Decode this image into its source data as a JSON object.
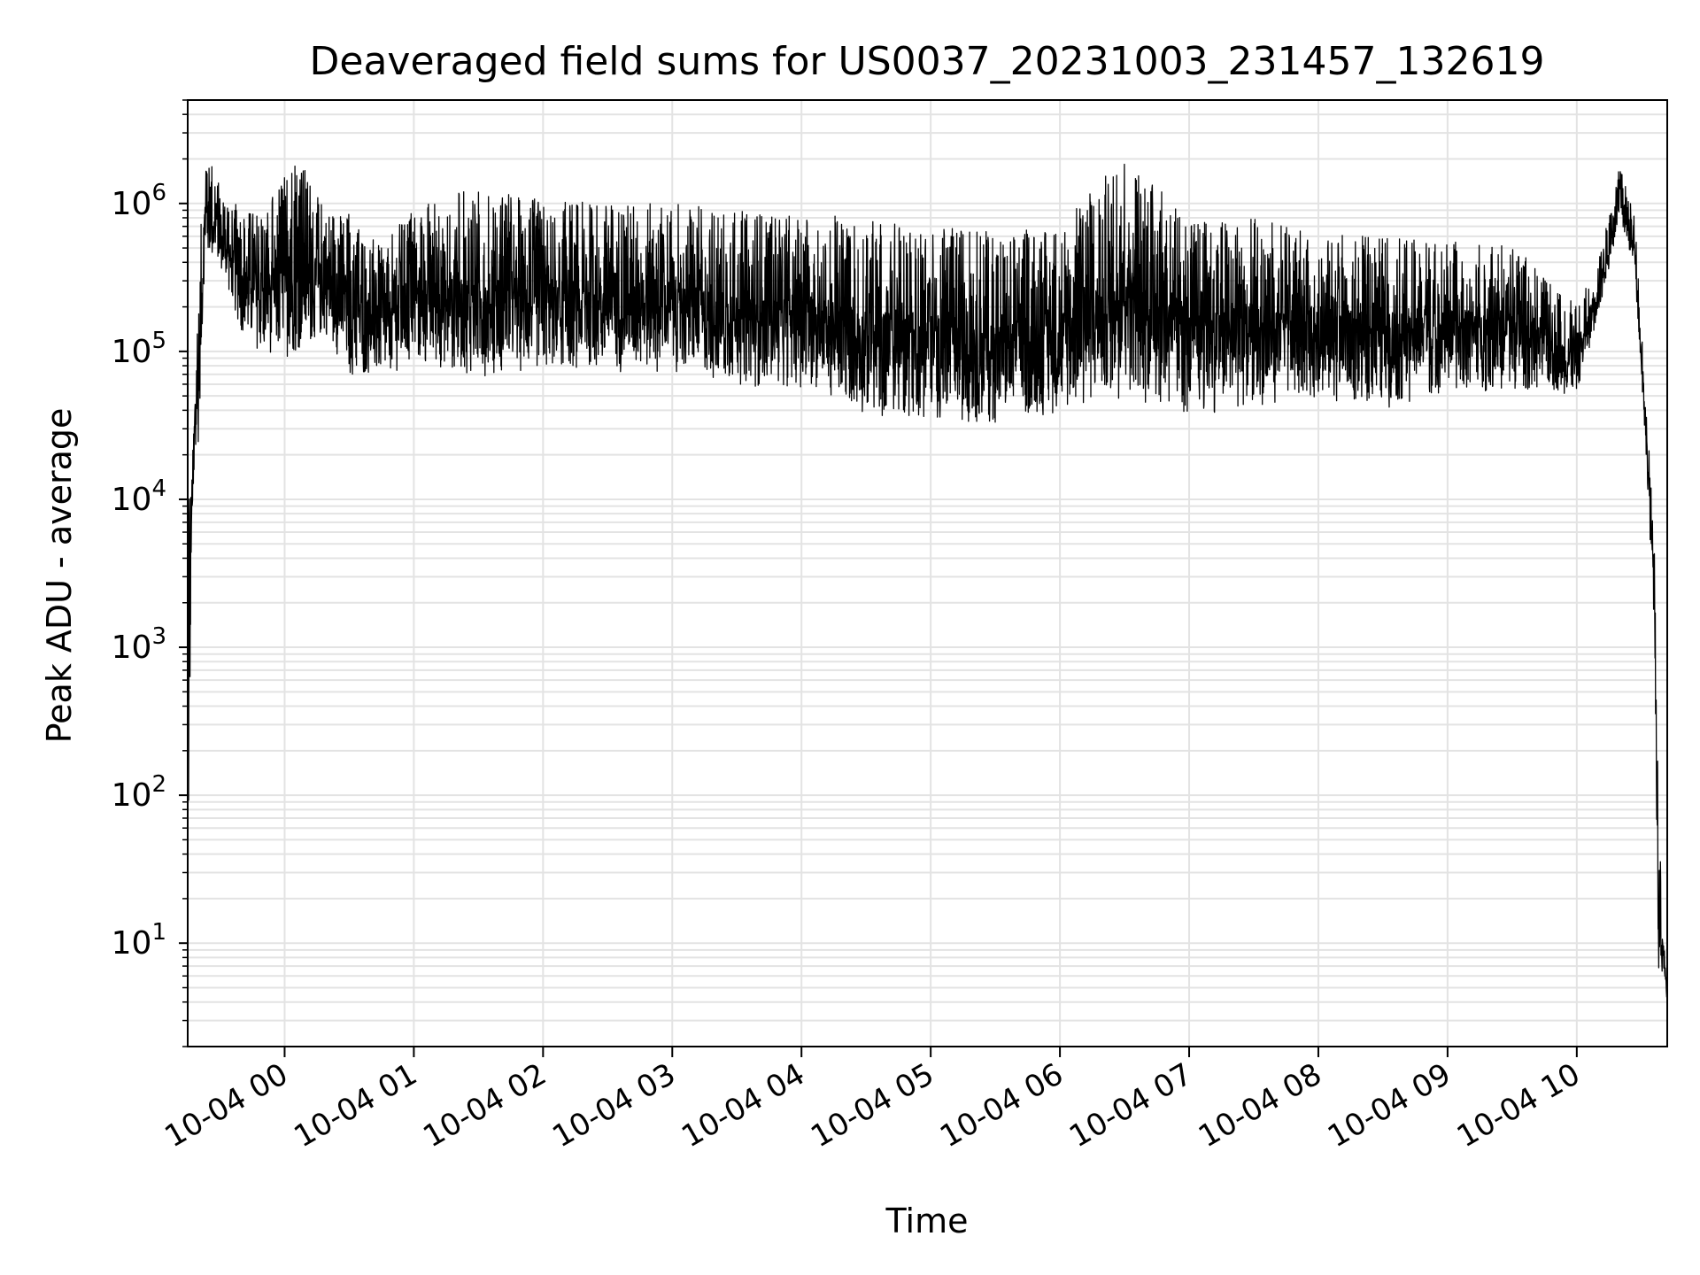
{
  "chart_data": {
    "type": "line",
    "title": "Deaveraged field sums for US0037_20231003_231457_132619",
    "xlabel": "Time",
    "ylabel": "Peak ADU - average",
    "yscale": "log",
    "ylim": [
      2,
      5000000
    ],
    "xlim": [
      "2023-10-03 23:15",
      "2023-10-04 10:42"
    ],
    "grid": true,
    "x_ticks": [
      {
        "label": "10-04 00",
        "value": "2023-10-04 00:00"
      },
      {
        "label": "10-04 01",
        "value": "2023-10-04 01:00"
      },
      {
        "label": "10-04 02",
        "value": "2023-10-04 02:00"
      },
      {
        "label": "10-04 03",
        "value": "2023-10-04 03:00"
      },
      {
        "label": "10-04 04",
        "value": "2023-10-04 04:00"
      },
      {
        "label": "10-04 05",
        "value": "2023-10-04 05:00"
      },
      {
        "label": "10-04 06",
        "value": "2023-10-04 06:00"
      },
      {
        "label": "10-04 07",
        "value": "2023-10-04 07:00"
      },
      {
        "label": "10-04 08",
        "value": "2023-10-04 08:00"
      },
      {
        "label": "10-04 09",
        "value": "2023-10-04 09:00"
      },
      {
        "label": "10-04 10",
        "value": "2023-10-04 10:00"
      }
    ],
    "y_ticks": [
      {
        "base": "10",
        "exp": "1",
        "value": 10
      },
      {
        "base": "10",
        "exp": "2",
        "value": 100
      },
      {
        "base": "10",
        "exp": "3",
        "value": 1000
      },
      {
        "base": "10",
        "exp": "4",
        "value": 10000
      },
      {
        "base": "10",
        "exp": "5",
        "value": 100000
      },
      {
        "base": "10",
        "exp": "6",
        "value": 1000000
      }
    ],
    "series": [
      {
        "color": "#000000",
        "envelope": [
          {
            "x": "2023-10-03 23:15",
            "low": 2,
            "high": 28000
          },
          {
            "x": "2023-10-03 23:17",
            "low": 6000,
            "high": 15000
          },
          {
            "x": "2023-10-03 23:20",
            "low": 15000,
            "high": 300000
          },
          {
            "x": "2023-10-03 23:23",
            "low": 300000,
            "high": 2700000
          },
          {
            "x": "2023-10-03 23:30",
            "low": 300000,
            "high": 1300000
          },
          {
            "x": "2023-10-03 23:40",
            "low": 90000,
            "high": 900000
          },
          {
            "x": "2023-10-03 23:50",
            "low": 60000,
            "high": 900000
          },
          {
            "x": "2023-10-04 00:05",
            "low": 50000,
            "high": 2300000
          },
          {
            "x": "2023-10-04 00:20",
            "low": 90000,
            "high": 900000
          },
          {
            "x": "2023-10-04 00:30",
            "low": 40000,
            "high": 900000
          },
          {
            "x": "2023-10-04 00:45",
            "low": 45000,
            "high": 500000
          },
          {
            "x": "2023-10-04 01:00",
            "low": 50000,
            "high": 1000000
          },
          {
            "x": "2023-10-04 01:30",
            "low": 40000,
            "high": 1300000
          },
          {
            "x": "2023-10-04 02:00",
            "low": 45000,
            "high": 1050000
          },
          {
            "x": "2023-10-04 02:30",
            "low": 45000,
            "high": 1000000
          },
          {
            "x": "2023-10-04 03:00",
            "low": 45000,
            "high": 1000000
          },
          {
            "x": "2023-10-04 03:30",
            "low": 35000,
            "high": 900000
          },
          {
            "x": "2023-10-04 04:00",
            "low": 35000,
            "high": 850000
          },
          {
            "x": "2023-10-04 04:30",
            "low": 20000,
            "high": 800000
          },
          {
            "x": "2023-10-04 05:00",
            "low": 20000,
            "high": 700000
          },
          {
            "x": "2023-10-04 05:30",
            "low": 18000,
            "high": 650000
          },
          {
            "x": "2023-10-04 06:00",
            "low": 22000,
            "high": 700000
          },
          {
            "x": "2023-10-04 06:30",
            "low": 25000,
            "high": 2300000
          },
          {
            "x": "2023-10-04 07:00",
            "low": 20000,
            "high": 750000
          },
          {
            "x": "2023-10-04 07:30",
            "low": 25000,
            "high": 800000
          },
          {
            "x": "2023-10-04 08:00",
            "low": 30000,
            "high": 650000
          },
          {
            "x": "2023-10-04 08:30",
            "low": 25000,
            "high": 600000
          },
          {
            "x": "2023-10-04 09:00",
            "low": 35000,
            "high": 550000
          },
          {
            "x": "2023-10-04 09:30",
            "low": 35000,
            "high": 550000
          },
          {
            "x": "2023-10-04 10:00",
            "low": 40000,
            "high": 200000
          },
          {
            "x": "2023-10-04 10:10",
            "low": 150000,
            "high": 400000
          },
          {
            "x": "2023-10-04 10:20",
            "low": 600000,
            "high": 1800000
          },
          {
            "x": "2023-10-04 10:27",
            "low": 300000,
            "high": 800000
          },
          {
            "x": "2023-10-04 10:33",
            "low": 10000,
            "high": 30000
          },
          {
            "x": "2023-10-04 10:36",
            "low": 1000,
            "high": 5000
          },
          {
            "x": "2023-10-04 10:38",
            "low": 4,
            "high": 60
          },
          {
            "x": "2023-10-04 10:42",
            "low": 4,
            "high": 5
          }
        ]
      }
    ]
  }
}
